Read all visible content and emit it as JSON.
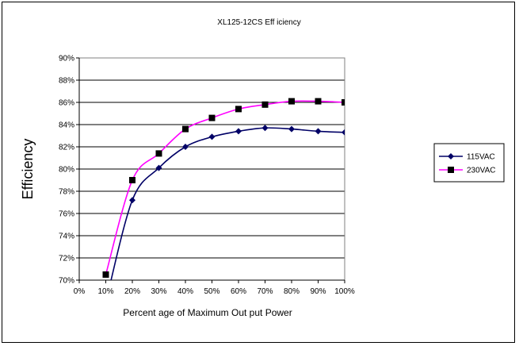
{
  "chart_data": {
    "type": "line",
    "title": "XL125-12CS Eff iciency",
    "xlabel": "Percent age of Maximum Out put Power",
    "ylabel": "Efficiency",
    "x": [
      10,
      20,
      30,
      40,
      50,
      60,
      70,
      80,
      90,
      100
    ],
    "xlim": [
      0,
      100
    ],
    "ylim": [
      70,
      90
    ],
    "x_ticks": [
      0,
      10,
      20,
      30,
      40,
      50,
      60,
      70,
      80,
      90,
      100
    ],
    "x_tick_labels": [
      "0%",
      "10%",
      "20%",
      "30%",
      "40%",
      "50%",
      "60%",
      "70%",
      "80%",
      "90%",
      "100%"
    ],
    "y_ticks": [
      70,
      72,
      74,
      76,
      78,
      80,
      82,
      84,
      86,
      88,
      90
    ],
    "y_tick_labels": [
      "70%",
      "72%",
      "74%",
      "76%",
      "78%",
      "80%",
      "82%",
      "84%",
      "86%",
      "88%",
      "90%"
    ],
    "grid": "horizontal",
    "legend_position": "right",
    "series": [
      {
        "name": "115VAC",
        "color": "#000066",
        "marker": "diamond",
        "values": [
          68.0,
          77.2,
          80.1,
          82.0,
          82.9,
          83.4,
          83.7,
          83.6,
          83.4,
          83.3
        ]
      },
      {
        "name": "230VAC",
        "color": "#ff00ff",
        "marker": "square",
        "marker_color": "#000000",
        "values": [
          70.5,
          79.0,
          81.4,
          83.6,
          84.6,
          85.4,
          85.8,
          86.1,
          86.1,
          86.0
        ]
      }
    ]
  }
}
